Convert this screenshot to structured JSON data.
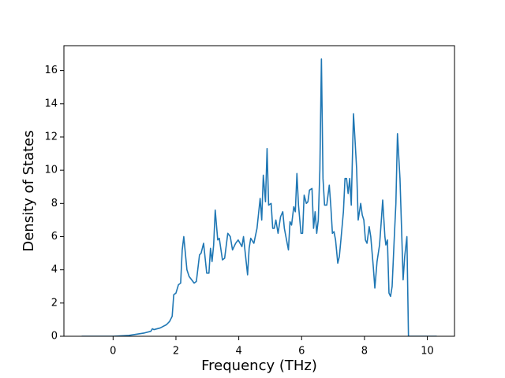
{
  "chart_data": {
    "type": "line",
    "x_label": "Frequency (THz)",
    "y_label": "Density of States",
    "xlim": [
      -1.565,
      10.865
    ],
    "ylim": [
      0,
      17.5
    ],
    "xticks": [
      0,
      2,
      4,
      6,
      8,
      10
    ],
    "yticks": [
      0,
      2,
      4,
      6,
      8,
      10,
      12,
      14,
      16
    ],
    "grid": false,
    "series": [
      {
        "color": "#1f77b4",
        "x": [
          -1,
          0,
          0.5,
          1.0,
          1.2,
          1.25,
          1.3,
          1.5,
          1.6,
          1.7,
          1.8,
          1.88,
          1.93,
          2.0,
          2.08,
          2.15,
          2.2,
          2.25,
          2.35,
          2.42,
          2.58,
          2.65,
          2.75,
          2.8,
          2.88,
          2.98,
          3.05,
          3.1,
          3.15,
          3.2,
          3.25,
          3.33,
          3.38,
          3.48,
          3.55,
          3.65,
          3.73,
          3.8,
          3.9,
          3.98,
          4.1,
          4.15,
          4.28,
          4.33,
          4.38,
          4.48,
          4.58,
          4.68,
          4.73,
          4.78,
          4.85,
          4.9,
          4.95,
          5.03,
          5.08,
          5.13,
          5.18,
          5.25,
          5.33,
          5.4,
          5.45,
          5.58,
          5.63,
          5.68,
          5.75,
          5.8,
          5.85,
          5.9,
          5.98,
          6.03,
          6.08,
          6.15,
          6.2,
          6.25,
          6.33,
          6.38,
          6.43,
          6.48,
          6.53,
          6.58,
          6.63,
          6.68,
          6.73,
          6.8,
          6.88,
          6.93,
          6.98,
          7.03,
          7.08,
          7.15,
          7.2,
          7.25,
          7.33,
          7.38,
          7.43,
          7.48,
          7.53,
          7.58,
          7.65,
          7.7,
          7.75,
          7.8,
          7.88,
          7.93,
          7.98,
          8.03,
          8.08,
          8.15,
          8.2,
          8.28,
          8.33,
          8.4,
          8.48,
          8.53,
          8.58,
          8.65,
          8.68,
          8.73,
          8.78,
          8.83,
          8.88,
          8.95,
          9.0,
          9.05,
          9.13,
          9.18,
          9.23,
          9.28,
          9.35,
          9.4,
          10.3
        ],
        "values": [
          0,
          0,
          0.05,
          0.2,
          0.3,
          0.45,
          0.4,
          0.5,
          0.6,
          0.7,
          0.9,
          1.2,
          2.5,
          2.6,
          3.1,
          3.2,
          5.2,
          6.0,
          4.0,
          3.6,
          3.2,
          3.3,
          4.9,
          5.0,
          5.6,
          3.8,
          3.8,
          5.3,
          4.5,
          5.5,
          7.6,
          5.8,
          5.9,
          4.6,
          4.7,
          6.2,
          6.0,
          5.2,
          5.6,
          5.8,
          5.4,
          6.0,
          3.7,
          5.3,
          5.9,
          5.6,
          6.5,
          8.3,
          7.0,
          9.7,
          8.1,
          11.3,
          7.9,
          8.0,
          6.5,
          6.5,
          7.0,
          6.2,
          7.2,
          7.5,
          6.5,
          5.2,
          6.9,
          6.7,
          7.8,
          7.5,
          9.8,
          7.9,
          6.2,
          6.2,
          8.5,
          8.0,
          8.1,
          8.8,
          8.9,
          6.5,
          7.5,
          6.2,
          7.0,
          10.0,
          16.7,
          9.5,
          7.9,
          7.9,
          9.1,
          7.8,
          6.2,
          6.3,
          5.8,
          4.4,
          4.8,
          5.8,
          7.5,
          9.5,
          9.5,
          8.6,
          9.5,
          7.9,
          13.4,
          11.8,
          10.1,
          7.0,
          8.0,
          7.3,
          7.0,
          5.8,
          5.6,
          6.6,
          6.0,
          4.2,
          2.9,
          4.5,
          5.5,
          6.8,
          8.2,
          6.0,
          5.5,
          5.8,
          2.6,
          2.4,
          3.0,
          6.0,
          8.0,
          12.2,
          9.5,
          6.5,
          3.4,
          4.8,
          6.0,
          0,
          0
        ]
      }
    ]
  }
}
